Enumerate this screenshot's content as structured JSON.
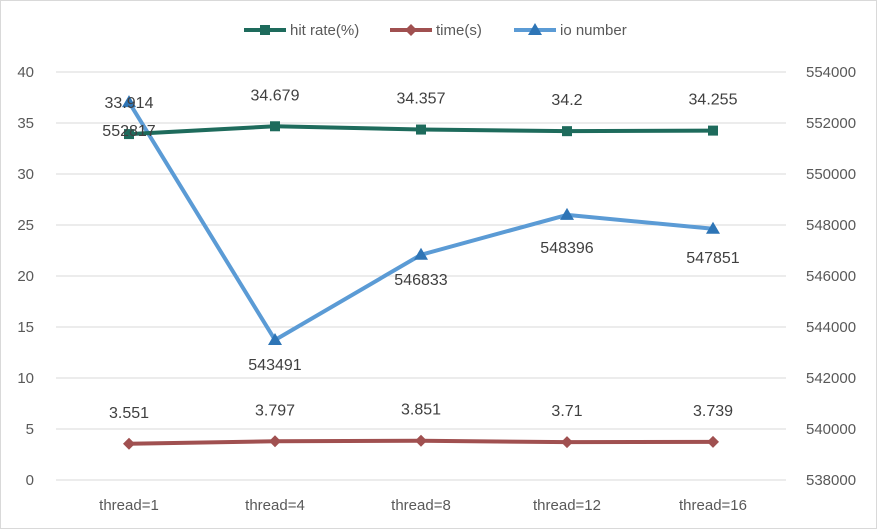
{
  "chart_data": {
    "type": "line",
    "categories": [
      "thread=1",
      "thread=4",
      "thread=8",
      "thread=12",
      "thread=16"
    ],
    "series": [
      {
        "name": "hit rate(%)",
        "axis": "left",
        "color": "#1e6b5c",
        "marker": "square",
        "values": [
          33.914,
          34.679,
          34.357,
          34.2,
          34.255
        ],
        "labels": [
          "33.914",
          "34.679",
          "34.357",
          "34.2",
          "34.255"
        ]
      },
      {
        "name": "time(s)",
        "axis": "left",
        "color": "#a05050",
        "marker": "diamond",
        "values": [
          3.551,
          3.797,
          3.851,
          3.71,
          3.739
        ],
        "labels": [
          "3.551",
          "3.797",
          "3.851",
          "3.71",
          "3.739"
        ]
      },
      {
        "name": "io number",
        "axis": "right",
        "color": "#5b9bd5",
        "marker_color": "#2e75b6",
        "marker": "triangle",
        "values": [
          552817,
          543491,
          546833,
          548396,
          547851
        ],
        "labels": [
          "552817",
          "543491",
          "546833",
          "548396",
          "547851"
        ]
      }
    ],
    "y_left": {
      "range": [
        0,
        40
      ],
      "ticks": [
        "0",
        "5",
        "10",
        "15",
        "20",
        "25",
        "30",
        "35",
        "40"
      ]
    },
    "y_right": {
      "range": [
        538000,
        554000
      ],
      "ticks": [
        "538000",
        "540000",
        "542000",
        "544000",
        "546000",
        "548000",
        "550000",
        "552000",
        "554000"
      ]
    },
    "legend_position": "top",
    "grid": true,
    "grid_color": "#d9d9d9"
  }
}
